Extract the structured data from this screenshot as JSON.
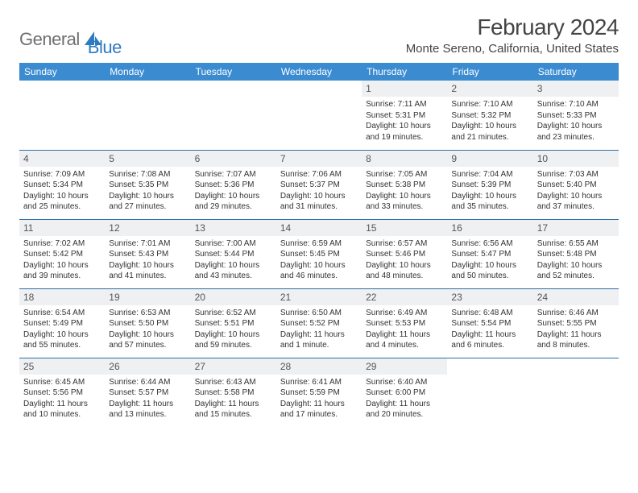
{
  "logo": {
    "part1": "General",
    "part2": "Blue"
  },
  "title": "February 2024",
  "location": "Monte Sereno, California, United States",
  "colors": {
    "header_bg": "#3a8bd0",
    "header_text": "#ffffff",
    "daynum_bg": "#eef0f1",
    "row_border": "#2f6fa8",
    "logo_gray": "#6f6f6f",
    "logo_blue": "#2f7bbf"
  },
  "day_headers": [
    "Sunday",
    "Monday",
    "Tuesday",
    "Wednesday",
    "Thursday",
    "Friday",
    "Saturday"
  ],
  "weeks": [
    [
      {
        "blank": true
      },
      {
        "blank": true
      },
      {
        "blank": true
      },
      {
        "blank": true
      },
      {
        "num": "1",
        "sunrise": "Sunrise: 7:11 AM",
        "sunset": "Sunset: 5:31 PM",
        "daylight": "Daylight: 10 hours and 19 minutes."
      },
      {
        "num": "2",
        "sunrise": "Sunrise: 7:10 AM",
        "sunset": "Sunset: 5:32 PM",
        "daylight": "Daylight: 10 hours and 21 minutes."
      },
      {
        "num": "3",
        "sunrise": "Sunrise: 7:10 AM",
        "sunset": "Sunset: 5:33 PM",
        "daylight": "Daylight: 10 hours and 23 minutes."
      }
    ],
    [
      {
        "num": "4",
        "sunrise": "Sunrise: 7:09 AM",
        "sunset": "Sunset: 5:34 PM",
        "daylight": "Daylight: 10 hours and 25 minutes."
      },
      {
        "num": "5",
        "sunrise": "Sunrise: 7:08 AM",
        "sunset": "Sunset: 5:35 PM",
        "daylight": "Daylight: 10 hours and 27 minutes."
      },
      {
        "num": "6",
        "sunrise": "Sunrise: 7:07 AM",
        "sunset": "Sunset: 5:36 PM",
        "daylight": "Daylight: 10 hours and 29 minutes."
      },
      {
        "num": "7",
        "sunrise": "Sunrise: 7:06 AM",
        "sunset": "Sunset: 5:37 PM",
        "daylight": "Daylight: 10 hours and 31 minutes."
      },
      {
        "num": "8",
        "sunrise": "Sunrise: 7:05 AM",
        "sunset": "Sunset: 5:38 PM",
        "daylight": "Daylight: 10 hours and 33 minutes."
      },
      {
        "num": "9",
        "sunrise": "Sunrise: 7:04 AM",
        "sunset": "Sunset: 5:39 PM",
        "daylight": "Daylight: 10 hours and 35 minutes."
      },
      {
        "num": "10",
        "sunrise": "Sunrise: 7:03 AM",
        "sunset": "Sunset: 5:40 PM",
        "daylight": "Daylight: 10 hours and 37 minutes."
      }
    ],
    [
      {
        "num": "11",
        "sunrise": "Sunrise: 7:02 AM",
        "sunset": "Sunset: 5:42 PM",
        "daylight": "Daylight: 10 hours and 39 minutes."
      },
      {
        "num": "12",
        "sunrise": "Sunrise: 7:01 AM",
        "sunset": "Sunset: 5:43 PM",
        "daylight": "Daylight: 10 hours and 41 minutes."
      },
      {
        "num": "13",
        "sunrise": "Sunrise: 7:00 AM",
        "sunset": "Sunset: 5:44 PM",
        "daylight": "Daylight: 10 hours and 43 minutes."
      },
      {
        "num": "14",
        "sunrise": "Sunrise: 6:59 AM",
        "sunset": "Sunset: 5:45 PM",
        "daylight": "Daylight: 10 hours and 46 minutes."
      },
      {
        "num": "15",
        "sunrise": "Sunrise: 6:57 AM",
        "sunset": "Sunset: 5:46 PM",
        "daylight": "Daylight: 10 hours and 48 minutes."
      },
      {
        "num": "16",
        "sunrise": "Sunrise: 6:56 AM",
        "sunset": "Sunset: 5:47 PM",
        "daylight": "Daylight: 10 hours and 50 minutes."
      },
      {
        "num": "17",
        "sunrise": "Sunrise: 6:55 AM",
        "sunset": "Sunset: 5:48 PM",
        "daylight": "Daylight: 10 hours and 52 minutes."
      }
    ],
    [
      {
        "num": "18",
        "sunrise": "Sunrise: 6:54 AM",
        "sunset": "Sunset: 5:49 PM",
        "daylight": "Daylight: 10 hours and 55 minutes."
      },
      {
        "num": "19",
        "sunrise": "Sunrise: 6:53 AM",
        "sunset": "Sunset: 5:50 PM",
        "daylight": "Daylight: 10 hours and 57 minutes."
      },
      {
        "num": "20",
        "sunrise": "Sunrise: 6:52 AM",
        "sunset": "Sunset: 5:51 PM",
        "daylight": "Daylight: 10 hours and 59 minutes."
      },
      {
        "num": "21",
        "sunrise": "Sunrise: 6:50 AM",
        "sunset": "Sunset: 5:52 PM",
        "daylight": "Daylight: 11 hours and 1 minute."
      },
      {
        "num": "22",
        "sunrise": "Sunrise: 6:49 AM",
        "sunset": "Sunset: 5:53 PM",
        "daylight": "Daylight: 11 hours and 4 minutes."
      },
      {
        "num": "23",
        "sunrise": "Sunrise: 6:48 AM",
        "sunset": "Sunset: 5:54 PM",
        "daylight": "Daylight: 11 hours and 6 minutes."
      },
      {
        "num": "24",
        "sunrise": "Sunrise: 6:46 AM",
        "sunset": "Sunset: 5:55 PM",
        "daylight": "Daylight: 11 hours and 8 minutes."
      }
    ],
    [
      {
        "num": "25",
        "sunrise": "Sunrise: 6:45 AM",
        "sunset": "Sunset: 5:56 PM",
        "daylight": "Daylight: 11 hours and 10 minutes."
      },
      {
        "num": "26",
        "sunrise": "Sunrise: 6:44 AM",
        "sunset": "Sunset: 5:57 PM",
        "daylight": "Daylight: 11 hours and 13 minutes."
      },
      {
        "num": "27",
        "sunrise": "Sunrise: 6:43 AM",
        "sunset": "Sunset: 5:58 PM",
        "daylight": "Daylight: 11 hours and 15 minutes."
      },
      {
        "num": "28",
        "sunrise": "Sunrise: 6:41 AM",
        "sunset": "Sunset: 5:59 PM",
        "daylight": "Daylight: 11 hours and 17 minutes."
      },
      {
        "num": "29",
        "sunrise": "Sunrise: 6:40 AM",
        "sunset": "Sunset: 6:00 PM",
        "daylight": "Daylight: 11 hours and 20 minutes."
      },
      {
        "blank": true
      },
      {
        "blank": true
      }
    ]
  ]
}
